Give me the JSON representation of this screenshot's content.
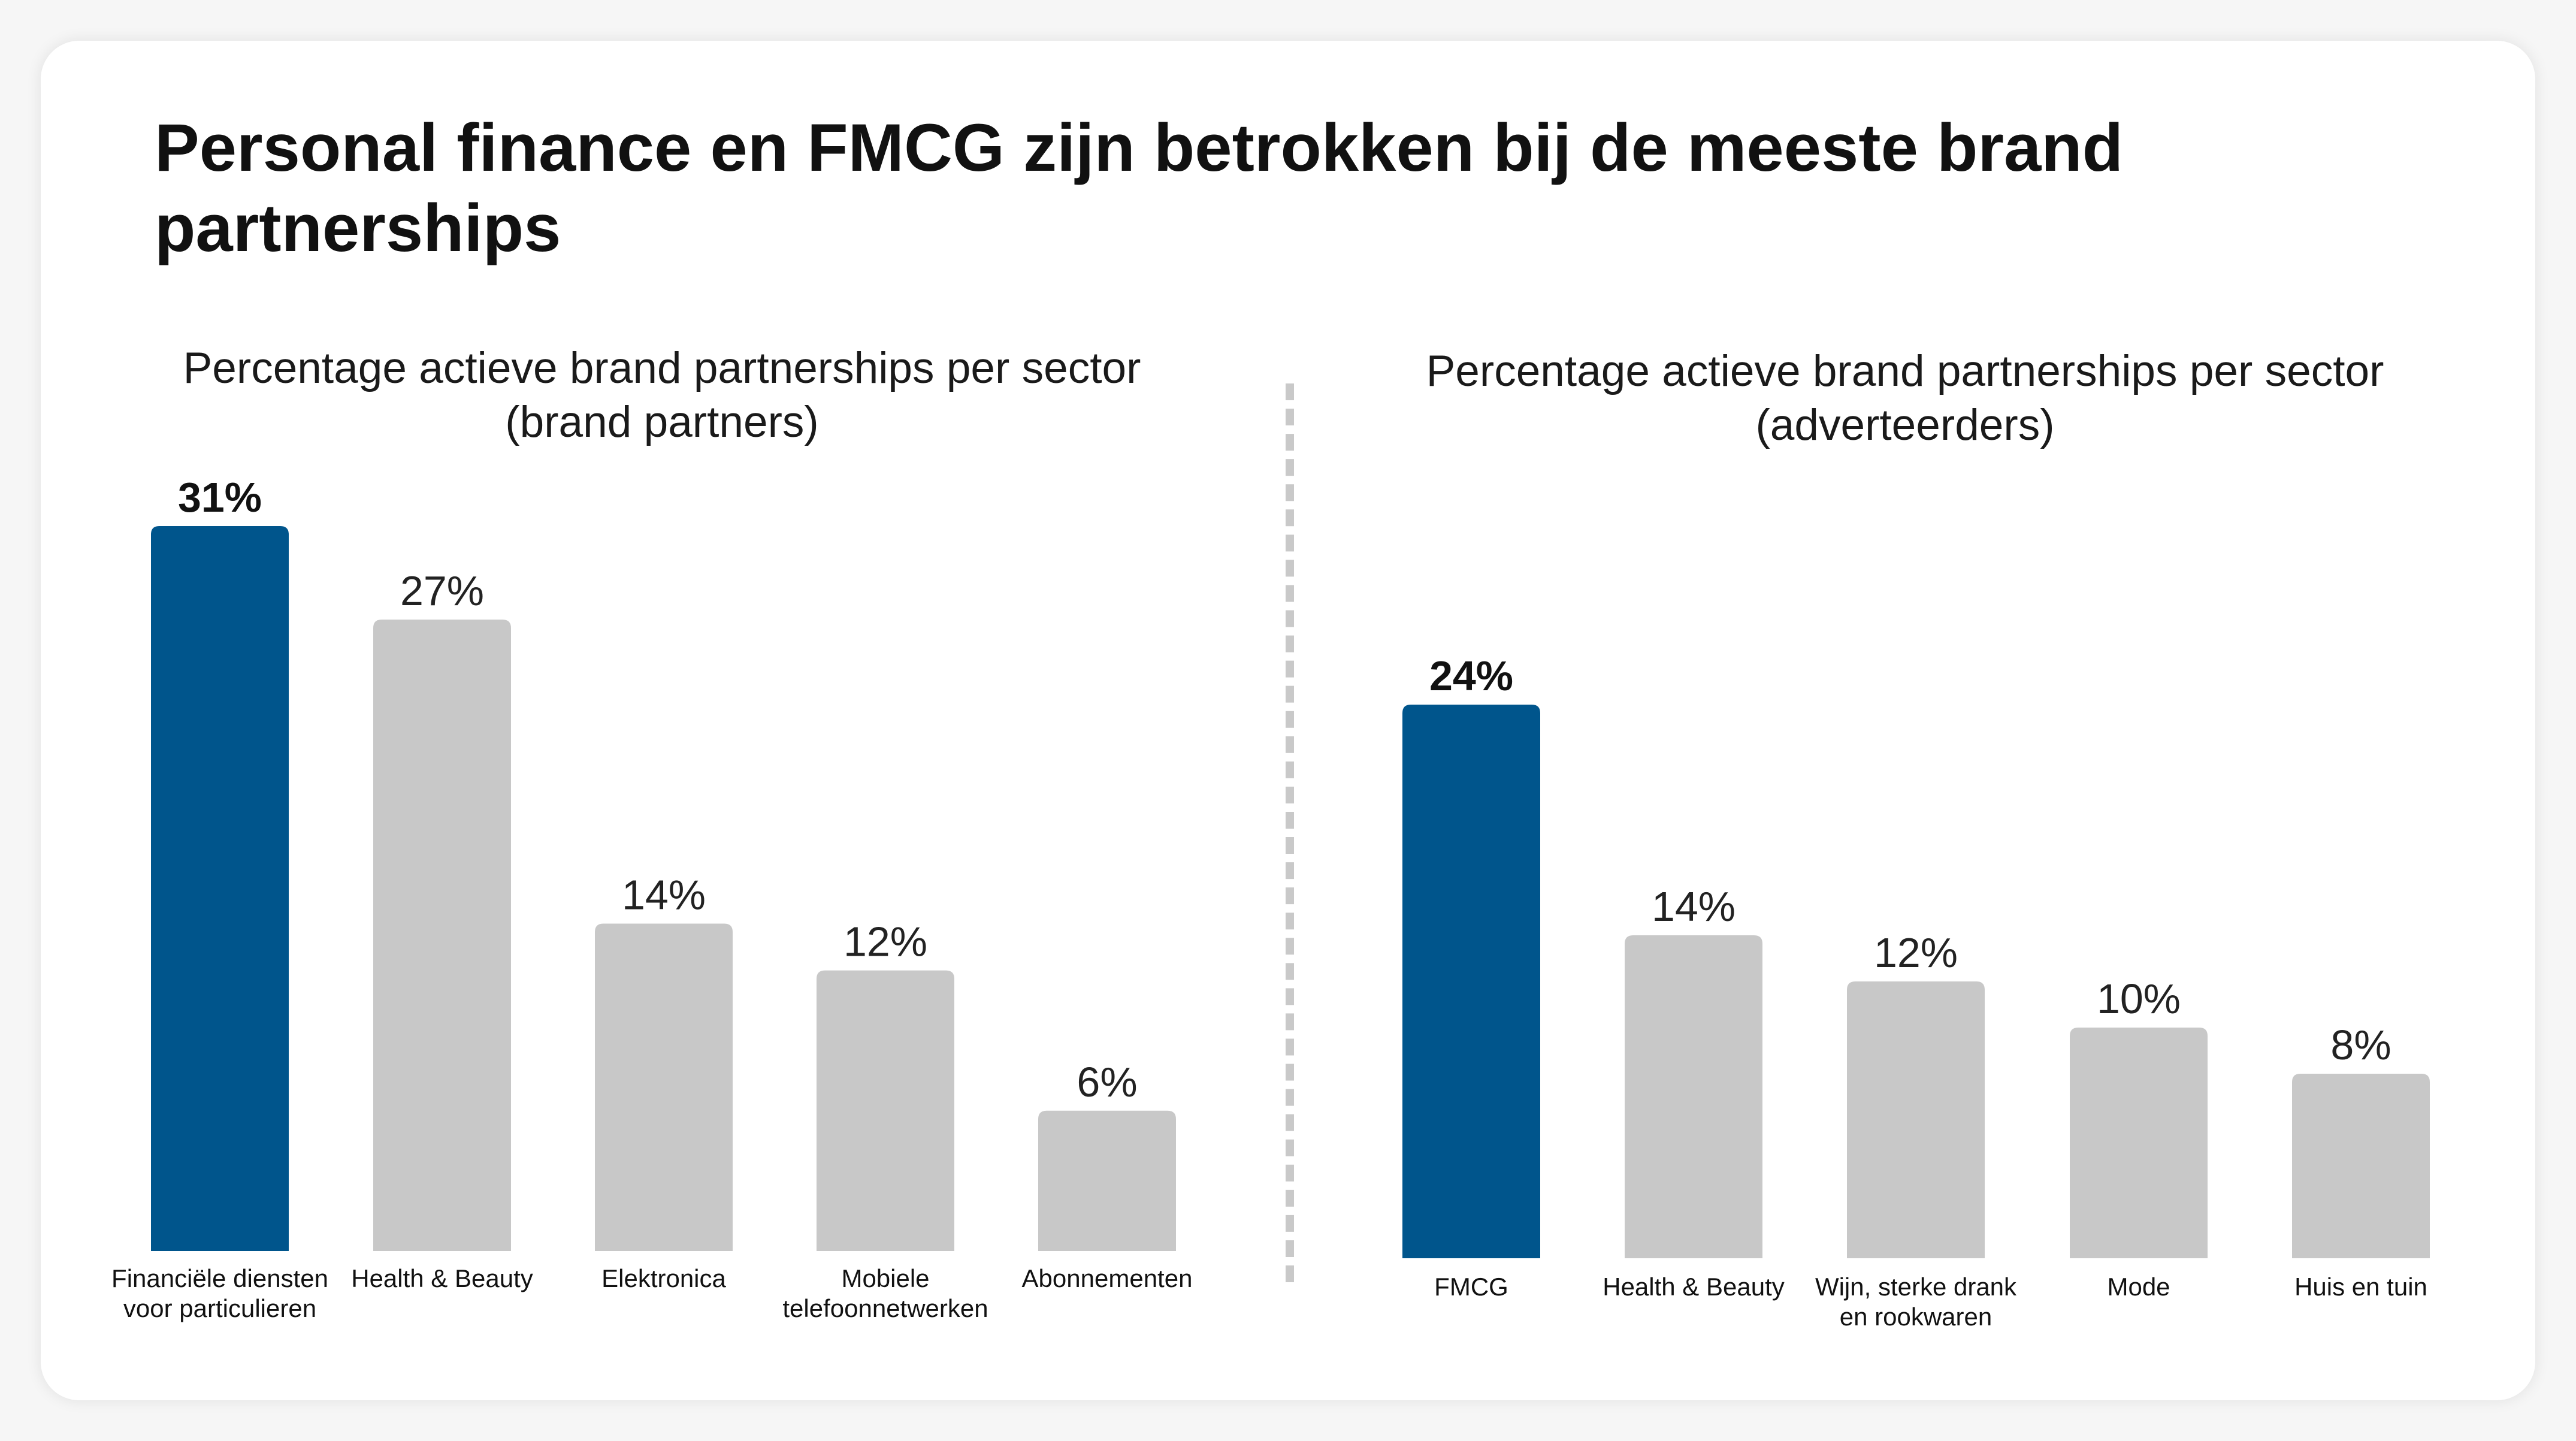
{
  "page": {
    "title": "Personal finance en FMCG zijn betrokken bij de meeste brand partnerships"
  },
  "colors": {
    "highlight": "#00558C",
    "neutral": "#C8C8C8",
    "card": "#FFFFFF"
  },
  "chart_data": [
    {
      "type": "bar",
      "title": "Percentage actieve brand partnerships per sector (brand partners)",
      "categories": [
        [
          "Financiële diensten",
          "voor particulieren"
        ],
        [
          "Health & Beauty"
        ],
        [
          "Elektronica"
        ],
        [
          "Mobiele",
          "telefoonnetwerken"
        ],
        [
          "Abonnementen"
        ]
      ],
      "values": [
        31,
        27,
        14,
        12,
        6
      ],
      "value_labels": [
        "31%",
        "27%",
        "14%",
        "12%",
        "6%"
      ],
      "highlight_index": 0,
      "ylim": [
        0,
        31
      ],
      "grid": false
    },
    {
      "type": "bar",
      "title": "Percentage actieve brand partnerships per sector (adverteerders)",
      "categories": [
        [
          "FMCG"
        ],
        [
          "Health & Beauty"
        ],
        [
          "Wijn, sterke drank",
          "en rookwaren"
        ],
        [
          "Mode"
        ],
        [
          "Huis en tuin"
        ]
      ],
      "values": [
        24,
        14,
        12,
        10,
        8
      ],
      "value_labels": [
        "24%",
        "14%",
        "12%",
        "10%",
        "8%"
      ],
      "highlight_index": 0,
      "ylim": [
        0,
        24
      ],
      "grid": false
    }
  ]
}
